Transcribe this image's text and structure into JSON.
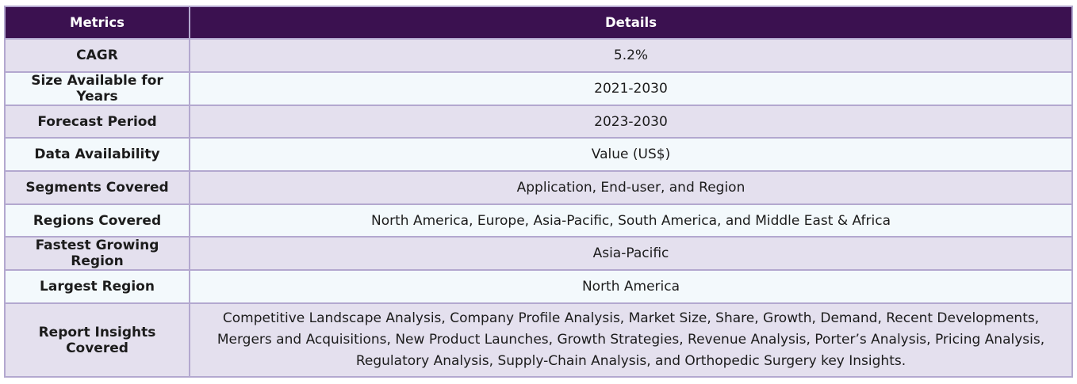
{
  "table": {
    "headers": [
      "Metrics",
      "Details"
    ],
    "rows": [
      [
        "CAGR",
        "5.2%"
      ],
      [
        "Size Available for Years",
        "2021-2030"
      ],
      [
        "Forecast Period",
        "2023-2030"
      ],
      [
        "Data Availability",
        "Value (US$)"
      ],
      [
        "Segments Covered",
        "Application, End-user, and Region"
      ],
      [
        "Regions Covered",
        "North America, Europe, Asia-Pacific, South America, and Middle East & Africa"
      ],
      [
        "Fastest Growing Region",
        "Asia-Pacific"
      ],
      [
        "Largest Region",
        "North America"
      ],
      [
        "Report Insights Covered",
        "Competitive Landscape Analysis, Company Profile Analysis, Market Size, Share, Growth, Demand, Recent Developments, Mergers and Acquisitions, New Product Launches, Growth Strategies, Revenue Analysis, Porter’s Analysis, Pricing Analysis, Regulatory Analysis, Supply-Chain Analysis, and Orthopedic Surgery key Insights."
      ]
    ]
  },
  "colors": {
    "header_bg": "#3b1150",
    "row_odd_bg": "#e4e0ee",
    "row_even_bg": "#f3f9fc",
    "border": "#b3a8cf"
  }
}
